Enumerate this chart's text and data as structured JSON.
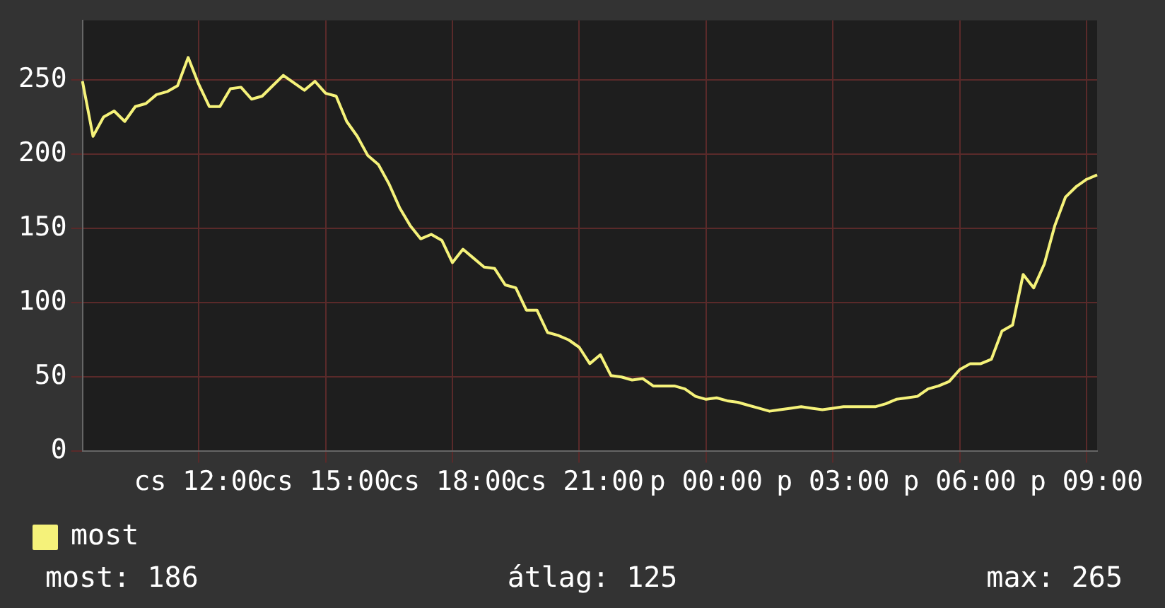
{
  "chart_data": {
    "type": "line",
    "categories": [
      null,
      null,
      null,
      null,
      null,
      null,
      null,
      null,
      null,
      null,
      null,
      "cs 12:00",
      null,
      null,
      null,
      null,
      null,
      null,
      null,
      null,
      null,
      null,
      null,
      "cs 15:00",
      null,
      null,
      null,
      null,
      null,
      null,
      null,
      null,
      null,
      null,
      null,
      "cs 18:00",
      null,
      null,
      null,
      null,
      null,
      null,
      null,
      null,
      null,
      null,
      null,
      "cs 21:00",
      null,
      null,
      null,
      null,
      null,
      null,
      null,
      null,
      null,
      null,
      null,
      "p 00:00",
      null,
      null,
      null,
      null,
      null,
      null,
      null,
      null,
      null,
      null,
      null,
      "p 03:00",
      null,
      null,
      null,
      null,
      null,
      null,
      null,
      null,
      null,
      null,
      null,
      "p 06:00",
      null,
      null,
      null,
      null,
      null,
      null,
      null,
      null,
      null,
      null,
      null,
      "p 09:00",
      null
    ],
    "series": [
      {
        "name": "most",
        "color": "#f5f27a",
        "values": [
          249,
          212,
          225,
          229,
          222,
          232,
          234,
          240,
          242,
          246,
          265,
          247,
          232,
          232,
          244,
          245,
          237,
          239,
          246,
          253,
          248,
          243,
          249,
          241,
          239,
          222,
          212,
          199,
          193,
          180,
          164,
          152,
          143,
          146,
          142,
          127,
          136,
          130,
          124,
          123,
          112,
          110,
          95,
          95,
          80,
          78,
          75,
          70,
          59,
          65,
          51,
          50,
          48,
          49,
          44,
          44,
          44,
          42,
          37,
          35,
          36,
          34,
          33,
          31,
          29,
          27,
          28,
          29,
          30,
          29,
          28,
          29,
          30,
          30,
          30,
          30,
          32,
          35,
          36,
          37,
          42,
          44,
          47,
          55,
          59,
          59,
          62,
          81,
          85,
          119,
          110,
          126,
          152,
          171,
          178,
          183,
          186
        ]
      }
    ],
    "ylim": [
      0,
      290
    ],
    "yticks": [
      0,
      50,
      100,
      150,
      200,
      250
    ],
    "grid": true,
    "legend": "bottom left",
    "marker": "none",
    "line_style": "solid",
    "annotations": [
      "most: 186",
      "átlag: 125",
      "max: 265"
    ]
  }
}
